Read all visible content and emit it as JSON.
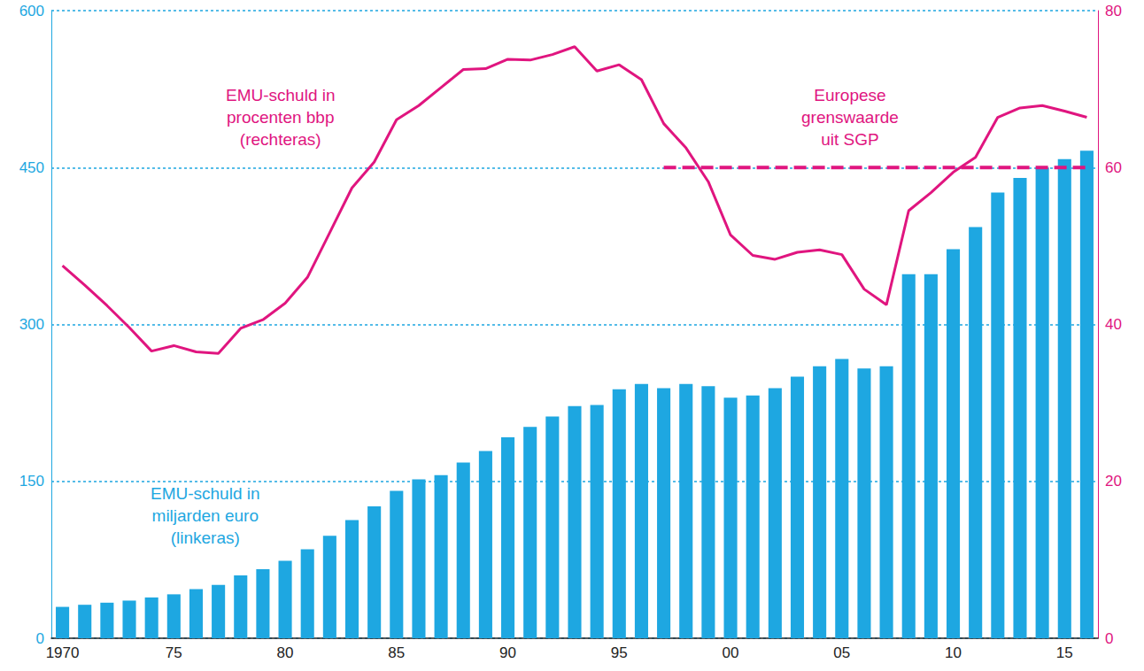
{
  "chart_data": {
    "type": "bar",
    "categories": [
      "1970",
      null,
      null,
      null,
      null,
      "75",
      null,
      null,
      null,
      null,
      "80",
      null,
      null,
      null,
      null,
      "85",
      null,
      null,
      null,
      null,
      "90",
      null,
      null,
      null,
      null,
      "95",
      null,
      null,
      null,
      null,
      "00",
      null,
      null,
      null,
      null,
      "05",
      null,
      null,
      null,
      null,
      "10",
      null,
      null,
      null,
      null,
      "15",
      null
    ],
    "series": [
      {
        "name": "EMU-schuld in\nmiljarden euro\n(linkeras)",
        "type": "bar",
        "color": "#1ea7e1",
        "values": [
          30,
          32,
          34,
          36,
          39,
          42,
          47,
          51,
          60,
          66,
          74,
          85,
          98,
          113,
          126,
          141,
          152,
          156,
          168,
          179,
          192,
          202,
          212,
          222,
          223,
          238,
          243,
          239,
          243,
          241,
          230,
          232,
          239,
          250,
          260,
          267,
          258,
          260,
          348,
          348,
          372,
          393,
          426,
          440,
          450,
          458,
          466
        ]
      },
      {
        "name": "EMU-schuld in\nprocenten bbp\n(rechteras)",
        "type": "line",
        "axis": "y2",
        "color": "#e0157f",
        "line_style": "solid",
        "values": [
          47.5,
          45,
          42.4,
          39.6,
          36.6,
          37.3,
          36.5,
          36.3,
          39.5,
          40.6,
          42.7,
          46,
          51.7,
          57.4,
          60.7,
          66.1,
          67.9,
          70.2,
          72.5,
          72.6,
          73.8,
          73.7,
          74.4,
          75.4,
          72.3,
          73.1,
          71.2,
          65.6,
          62.5,
          58.2,
          51.4,
          48.8,
          48.3,
          49.2,
          49.5,
          48.9,
          44.5,
          42.5,
          54.5,
          56.8,
          59.4,
          61.3,
          66.4,
          67.6,
          67.9,
          67.2,
          66.4
        ]
      },
      {
        "name": "Europese\ngrenswaarde\nuit SGP",
        "type": "line",
        "axis": "y2",
        "color": "#e0157f",
        "line_style": "dashed",
        "values": [
          null,
          null,
          null,
          null,
          null,
          null,
          null,
          null,
          null,
          null,
          null,
          null,
          null,
          null,
          null,
          null,
          null,
          null,
          null,
          null,
          null,
          null,
          null,
          null,
          null,
          null,
          null,
          60,
          60,
          60,
          60,
          60,
          60,
          60,
          60,
          60,
          60,
          60,
          60,
          60,
          60,
          60,
          60,
          60,
          60,
          60,
          60
        ]
      }
    ],
    "ylim": [
      0,
      600
    ],
    "yticks": [
      0,
      150,
      300,
      450,
      600
    ],
    "y2lim": [
      0,
      80
    ],
    "y2ticks": [
      0,
      20,
      40,
      60,
      80
    ],
    "grid": true
  }
}
